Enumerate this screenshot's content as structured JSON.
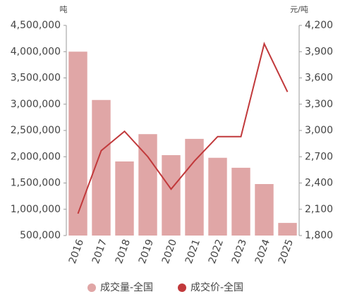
{
  "chart_data": {
    "type": "bar-line",
    "y_label": "吨",
    "y2_label": "元/吨",
    "categories": [
      "2016",
      "2017",
      "2018",
      "2019",
      "2020",
      "2021",
      "2022",
      "2023",
      "2024",
      "2025"
    ],
    "series": [
      {
        "name": "成交量-全国",
        "type": "bar",
        "color": "#e0a6a6",
        "values": [
          4000000,
          3080000,
          1910000,
          2430000,
          2030000,
          2340000,
          1980000,
          1790000,
          1480000,
          740000
        ]
      },
      {
        "name": "成交价-全国",
        "type": "line",
        "axis": "y2",
        "color": "#c1393b",
        "values": [
          2050,
          2770,
          2990,
          2700,
          2330,
          2650,
          2930,
          2930,
          3990,
          3440
        ]
      }
    ],
    "ylim": [
      500000,
      4500000
    ],
    "yticks": [
      {
        "value": 500000,
        "label": "500,000"
      },
      {
        "value": 1000000,
        "label": "1,000,000"
      },
      {
        "value": 1500000,
        "label": "1,500,000"
      },
      {
        "value": 2000000,
        "label": "2,000,000"
      },
      {
        "value": 2500000,
        "label": "2,500,000"
      },
      {
        "value": 3000000,
        "label": "3,000,000"
      },
      {
        "value": 3500000,
        "label": "3,500,000"
      },
      {
        "value": 4000000,
        "label": "4,000,000"
      },
      {
        "value": 4500000,
        "label": "4,500,000"
      }
    ],
    "y2lim": [
      1800,
      4200
    ],
    "y2ticks": [
      {
        "value": 1800,
        "label": "1,800"
      },
      {
        "value": 2100,
        "label": "2,100"
      },
      {
        "value": 2400,
        "label": "2,400"
      },
      {
        "value": 2700,
        "label": "2,700"
      },
      {
        "value": 3000,
        "label": "3,000"
      },
      {
        "value": 3300,
        "label": "3,300"
      },
      {
        "value": 3600,
        "label": "3,600"
      },
      {
        "value": 3900,
        "label": "3,900"
      },
      {
        "value": 4200,
        "label": "4,200"
      }
    ]
  }
}
